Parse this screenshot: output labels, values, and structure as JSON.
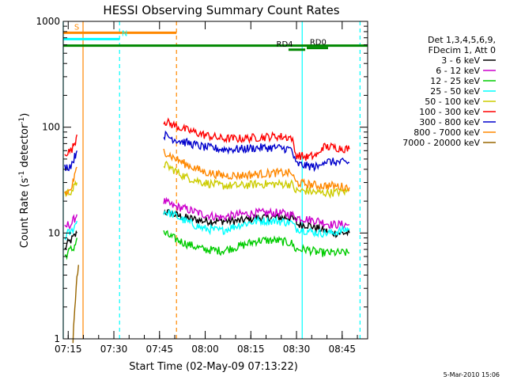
{
  "chart_data": {
    "type": "line",
    "title": "HESSI Observing Summary Count Rates",
    "xlabel": "Start Time (02-May-09 07:13:22)",
    "ylabel_main": "Count Rate (s",
    "ylabel_sup1": "-1",
    "ylabel_mid": " detector",
    "ylabel_sup2": "-1",
    "ylabel_end": ")",
    "yscale": "log",
    "ylim": [
      1,
      1000
    ],
    "xlim_minutes": [
      0,
      100
    ],
    "x_ticks": [
      {
        "label": "07:15",
        "t": 1.63
      },
      {
        "label": "07:30",
        "t": 16.63
      },
      {
        "label": "07:45",
        "t": 31.63
      },
      {
        "label": "08:00",
        "t": 46.63
      },
      {
        "label": "08:15",
        "t": 61.63
      },
      {
        "label": "08:30",
        "t": 76.63
      },
      {
        "label": "08:45",
        "t": 91.63
      }
    ],
    "y_ticks": [
      {
        "label": "1",
        "v": 1
      },
      {
        "label": "10",
        "v": 10
      },
      {
        "label": "100",
        "v": 100
      },
      {
        "label": "1000",
        "v": 1000
      }
    ],
    "legend_header": [
      "Det 1,3,4,5,6,9,",
      "FDecim 1, Att 0"
    ],
    "series": [
      {
        "name": "3 - 6 keV",
        "color": "#000000",
        "points": [
          [
            0.5,
            7
          ],
          [
            1.5,
            8
          ],
          [
            2.5,
            8.5
          ],
          [
            3.2,
            9
          ],
          [
            4,
            9.5
          ],
          [
            4.5,
            10
          ]
        ],
        "gap": [
          [
            33,
            16
          ],
          [
            40,
            14
          ],
          [
            46,
            13
          ],
          [
            52,
            13
          ],
          [
            58,
            13
          ],
          [
            64,
            14
          ],
          [
            70,
            14
          ],
          [
            75,
            14
          ],
          [
            76.4,
            13
          ],
          [
            77,
            12
          ],
          [
            80,
            12
          ],
          [
            84,
            11
          ],
          [
            88,
            10
          ],
          [
            94,
            10
          ]
        ]
      },
      {
        "name": "6 - 12 keV",
        "color": "#cc00cc",
        "points": [
          [
            0.5,
            11
          ],
          [
            1.5,
            12
          ],
          [
            2.5,
            12
          ],
          [
            3.2,
            13
          ],
          [
            4,
            14
          ],
          [
            4.5,
            15
          ]
        ],
        "gap": [
          [
            33,
            20
          ],
          [
            36,
            18
          ],
          [
            40,
            17
          ],
          [
            46,
            15
          ],
          [
            52,
            14
          ],
          [
            58,
            15
          ],
          [
            64,
            15.5
          ],
          [
            70,
            15.5
          ],
          [
            75,
            15
          ],
          [
            76.4,
            14
          ],
          [
            77,
            14
          ],
          [
            80,
            13.5
          ],
          [
            84,
            13
          ],
          [
            88,
            12
          ],
          [
            94,
            12
          ]
        ]
      },
      {
        "name": "12 - 25 keV",
        "color": "#00cc00",
        "points": [
          [
            0.5,
            6
          ],
          [
            1.5,
            6.5
          ],
          [
            2.5,
            7
          ],
          [
            3.2,
            7
          ],
          [
            4,
            8
          ],
          [
            4.5,
            9
          ]
        ],
        "gap": [
          [
            33,
            10
          ],
          [
            36,
            9
          ],
          [
            40,
            8
          ],
          [
            46,
            7
          ],
          [
            52,
            6.8
          ],
          [
            58,
            7.5
          ],
          [
            64,
            8.5
          ],
          [
            70,
            8.5
          ],
          [
            75,
            8
          ],
          [
            76.4,
            7
          ],
          [
            77,
            7
          ],
          [
            80,
            7
          ],
          [
            84,
            6.5
          ],
          [
            88,
            6.5
          ],
          [
            94,
            6.5
          ]
        ]
      },
      {
        "name": "25 - 50 keV",
        "color": "#00ffff",
        "points": [
          [
            0.5,
            9
          ],
          [
            1.5,
            10
          ],
          [
            2.5,
            10
          ],
          [
            3.2,
            11
          ],
          [
            4,
            12
          ],
          [
            4.5,
            13
          ]
        ],
        "gap": [
          [
            33,
            16
          ],
          [
            36,
            15
          ],
          [
            40,
            13
          ],
          [
            46,
            11
          ],
          [
            52,
            10.5
          ],
          [
            58,
            12
          ],
          [
            64,
            13
          ],
          [
            70,
            13
          ],
          [
            75,
            12.5
          ],
          [
            76.4,
            11
          ],
          [
            77,
            11
          ],
          [
            80,
            10.5
          ],
          [
            84,
            10
          ],
          [
            88,
            10
          ],
          [
            94,
            11
          ]
        ]
      },
      {
        "name": "50 - 100 keV",
        "color": "#cccc00",
        "points": [
          [
            0.5,
            24
          ],
          [
            1.5,
            24
          ],
          [
            2.5,
            25
          ],
          [
            3.2,
            26
          ],
          [
            4,
            28
          ],
          [
            4.5,
            30
          ]
        ],
        "gap": [
          [
            33,
            45
          ],
          [
            36,
            40
          ],
          [
            40,
            34
          ],
          [
            46,
            30
          ],
          [
            52,
            28
          ],
          [
            58,
            28
          ],
          [
            64,
            29
          ],
          [
            70,
            29
          ],
          [
            75,
            29
          ],
          [
            76.4,
            25
          ],
          [
            77,
            25
          ],
          [
            80,
            25
          ],
          [
            84,
            24
          ],
          [
            88,
            24
          ],
          [
            94,
            25
          ]
        ]
      },
      {
        "name": "100 - 300 keV",
        "color": "#ff0000",
        "points": [
          [
            0.5,
            58
          ],
          [
            1.5,
            58
          ],
          [
            2.5,
            60
          ],
          [
            3.2,
            65
          ],
          [
            4,
            75
          ],
          [
            4.5,
            85
          ]
        ],
        "gap": [
          [
            33,
            115
          ],
          [
            36,
            105
          ],
          [
            40,
            95
          ],
          [
            46,
            85
          ],
          [
            52,
            78
          ],
          [
            58,
            78
          ],
          [
            64,
            80
          ],
          [
            70,
            82
          ],
          [
            75,
            80
          ],
          [
            76.4,
            55
          ],
          [
            80,
            52
          ],
          [
            84,
            55
          ],
          [
            85,
            65
          ],
          [
            88,
            65
          ],
          [
            94,
            62
          ]
        ]
      },
      {
        "name": "300 - 800 keV",
        "color": "#0000cc",
        "points": [
          [
            0.5,
            42
          ],
          [
            1.5,
            42
          ],
          [
            2.5,
            44
          ],
          [
            3.2,
            48
          ],
          [
            4,
            55
          ],
          [
            4.5,
            60
          ]
        ],
        "gap": [
          [
            33,
            85
          ],
          [
            36,
            78
          ],
          [
            40,
            72
          ],
          [
            46,
            65
          ],
          [
            52,
            62
          ],
          [
            58,
            62
          ],
          [
            64,
            64
          ],
          [
            70,
            64
          ],
          [
            75,
            62
          ],
          [
            76.4,
            45
          ],
          [
            80,
            43
          ],
          [
            84,
            42
          ],
          [
            85,
            48
          ],
          [
            88,
            47
          ],
          [
            94,
            46
          ]
        ]
      },
      {
        "name": "800 - 7000 keV",
        "color": "#ff8800",
        "points": [
          [
            0.5,
            24
          ],
          [
            1.5,
            24
          ],
          [
            2.5,
            26
          ],
          [
            3.2,
            30
          ],
          [
            4,
            36
          ],
          [
            4.5,
            42
          ]
        ],
        "gap": [
          [
            33,
            60
          ],
          [
            36,
            52
          ],
          [
            40,
            45
          ],
          [
            46,
            38
          ],
          [
            52,
            35
          ],
          [
            58,
            35
          ],
          [
            64,
            36
          ],
          [
            70,
            37
          ],
          [
            75,
            37
          ],
          [
            76.4,
            30
          ],
          [
            80,
            29
          ],
          [
            84,
            28
          ],
          [
            88,
            28
          ],
          [
            94,
            27
          ]
        ]
      },
      {
        "name": "7000 - 20000 keV",
        "color": "#996600",
        "points": [
          [
            3.2,
            1
          ],
          [
            3.6,
            1.5
          ],
          [
            4,
            2.5
          ],
          [
            4.5,
            4
          ],
          [
            5,
            5
          ]
        ],
        "gap": []
      }
    ],
    "bars": [
      {
        "label": "S",
        "color": "#ff8800",
        "t0": 0,
        "t1": 37.2,
        "level": 780,
        "label_t": 3.6
      },
      {
        "label": "N",
        "color": "#00ffff",
        "t0": 0,
        "t1": 18.5,
        "level": 680,
        "label_t": 19.2
      },
      {
        "label": "",
        "color": "#008800",
        "t0": 0,
        "t1": 100,
        "level": 590,
        "label_t": 0
      },
      {
        "label": "RD4",
        "color": "#008800",
        "t0": 74,
        "t1": 79.5,
        "level": 540,
        "label_t": 70
      },
      {
        "label": "RD0",
        "color": "#008800",
        "t0": 80,
        "t1": 87,
        "level": 560,
        "label_t": 81
      }
    ],
    "vlines": [
      {
        "t": 0,
        "color": "#00ffff",
        "dashed": false
      },
      {
        "t": 6.5,
        "color": "#ff8800",
        "dashed": false
      },
      {
        "t": 18.5,
        "color": "#00ffff",
        "dashed": true
      },
      {
        "t": 37.2,
        "color": "#ff8800",
        "dashed": true
      },
      {
        "t": 78.5,
        "color": "#00ffff",
        "dashed": false
      },
      {
        "t": 97.5,
        "color": "#00ffff",
        "dashed": true
      }
    ],
    "grid": false,
    "legend_position": "right"
  },
  "footer_date": "5-Mar-2010 15:06"
}
